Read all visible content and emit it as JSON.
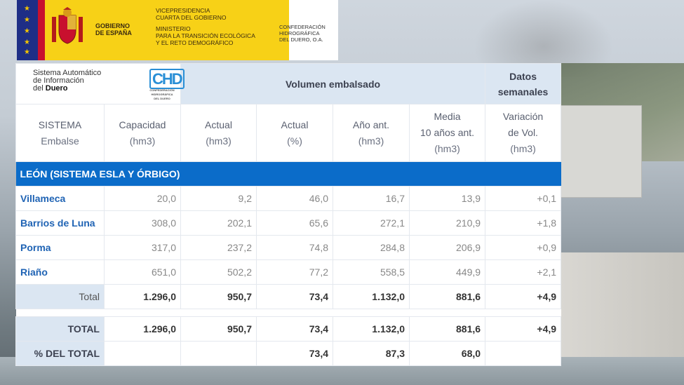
{
  "banner": {
    "gobierno": [
      "GOBIERNO",
      "DE ESPAÑA"
    ],
    "vicepresidencia": [
      "VICEPRESIDENCIA",
      "CUARTA DEL GOBIERNO"
    ],
    "ministerio": [
      "MINISTERIO",
      "PARA LA TRANSICIÓN ECOLÓGICA",
      "Y EL RETO DEMOGRÁFICO"
    ],
    "confederacion": [
      "CONFEDERACIÓN",
      "HIDROGRÁFICA",
      "DEL DUERO, O.A."
    ]
  },
  "system": {
    "line1": "Sistema Automático",
    "line2": "de Información",
    "line3_prefix": "del ",
    "line3_bold": "Duero",
    "logo": "CHD",
    "logo_sub": "CONFEDERACIÓN HIDROGRÁFICA DEL DUERO"
  },
  "header": {
    "volumen": "Volumen embalsado",
    "datos": "Datos",
    "semanales": "semanales"
  },
  "columns": [
    {
      "l1": "",
      "l2": "SISTEMA",
      "l3": "Embalse"
    },
    {
      "l1": "",
      "l2": "Capacidad",
      "l3": "(hm3)"
    },
    {
      "l1": "",
      "l2": "Actual",
      "l3": "(hm3)"
    },
    {
      "l1": "",
      "l2": "Actual",
      "l3": "(%)"
    },
    {
      "l1": "",
      "l2": "Año ant.",
      "l3": "(hm3)"
    },
    {
      "l1": "Media",
      "l2": "10 años ant.",
      "l3": "(hm3)"
    },
    {
      "l1": "Variación",
      "l2": "de Vol.",
      "l3": "(hm3)"
    }
  ],
  "region": "LEÓN (SISTEMA ESLA Y ÓRBIGO)",
  "rows": [
    {
      "name": "Villameca",
      "cap": "20,0",
      "act": "9,2",
      "pct": "46,0",
      "prev": "16,7",
      "avg": "13,9",
      "var": "+0,1"
    },
    {
      "name": "Barrios de Luna",
      "cap": "308,0",
      "act": "202,1",
      "pct": "65,6",
      "prev": "272,1",
      "avg": "210,9",
      "var": "+1,8"
    },
    {
      "name": "Porma",
      "cap": "317,0",
      "act": "237,2",
      "pct": "74,8",
      "prev": "284,8",
      "avg": "206,9",
      "var": "+0,9"
    },
    {
      "name": "Riaño",
      "cap": "651,0",
      "act": "502,2",
      "pct": "77,2",
      "prev": "558,5",
      "avg": "449,9",
      "var": "+2,1"
    }
  ],
  "subtotal": {
    "label": "Total",
    "cap": "1.296,0",
    "act": "950,7",
    "pct": "73,4",
    "prev": "1.132,0",
    "avg": "881,6",
    "var": "+4,9"
  },
  "grand_total": {
    "label": "TOTAL",
    "cap": "1.296,0",
    "act": "950,7",
    "pct": "73,4",
    "prev": "1.132,0",
    "avg": "881,6",
    "var": "+4,9"
  },
  "pct_total": {
    "label": "% DEL TOTAL",
    "pct": "73,4",
    "prev": "87,3",
    "avg": "68,0"
  }
}
